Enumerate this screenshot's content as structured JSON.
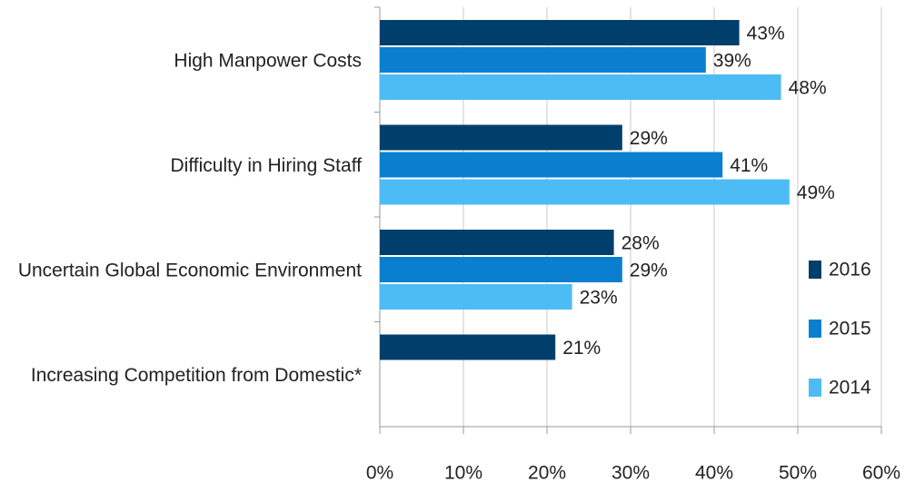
{
  "chart_data": {
    "type": "hbar",
    "categories": [
      "High Manpower Costs",
      "Difficulty in Hiring Staff",
      "Uncertain Global Economic Environment",
      "Increasing Competition from Domestic*"
    ],
    "series": [
      {
        "name": "2016",
        "color": "#003f6b",
        "values": [
          43,
          29,
          28,
          21
        ],
        "value_labels": [
          "43%",
          "29%",
          "28%",
          "21%"
        ]
      },
      {
        "name": "2015",
        "color": "#0a7fd0",
        "values": [
          39,
          41,
          29,
          null
        ],
        "value_labels": [
          "39%",
          "41%",
          "29%",
          null
        ]
      },
      {
        "name": "2014",
        "color": "#4dbcf5",
        "values": [
          48,
          49,
          23,
          null
        ],
        "value_labels": [
          "48%",
          "49%",
          "23%",
          null
        ]
      }
    ],
    "xlim": [
      0,
      60
    ],
    "xticks": [
      {
        "value": 0,
        "label": "0%"
      },
      {
        "value": 10,
        "label": "10%"
      },
      {
        "value": 20,
        "label": "20%"
      },
      {
        "value": 30,
        "label": "30%"
      },
      {
        "value": 40,
        "label": "40%"
      },
      {
        "value": 50,
        "label": "50%"
      },
      {
        "value": 60,
        "label": "60%"
      }
    ],
    "grid": true,
    "legend": "right"
  }
}
